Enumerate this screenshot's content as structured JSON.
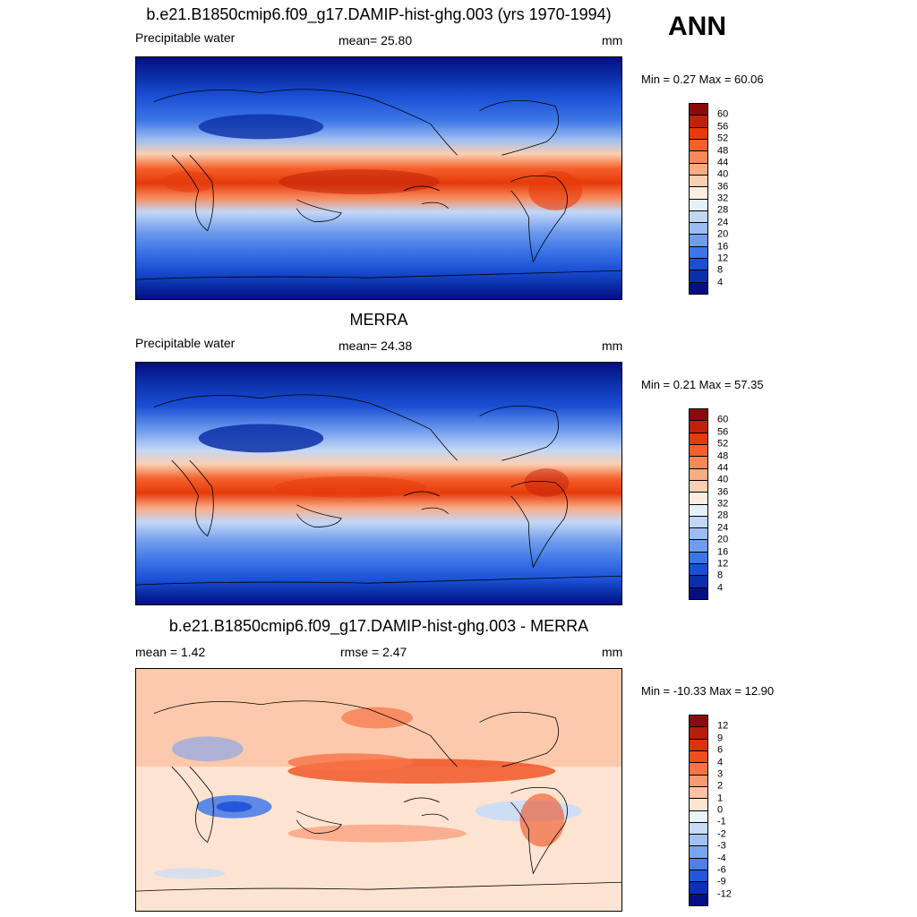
{
  "season": "ANN",
  "panels": [
    {
      "title": "b.e21.B1850cmip6.f09_g17.DAMIP-hist-ghg.003 (yrs 1970-1994)",
      "left": "Precipitable water",
      "center": "mean=  25.80",
      "right": "mm",
      "minmax": "Min =   0.27 Max =  60.06",
      "cbar_labels": [
        "60",
        "56",
        "52",
        "48",
        "44",
        "40",
        "36",
        "32",
        "28",
        "24",
        "20",
        "16",
        "12",
        "8",
        "4"
      ],
      "cbar_colors": [
        "#8b0a0a",
        "#c1200a",
        "#e63a0a",
        "#f4602c",
        "#f7885a",
        "#f9ab86",
        "#fbcfb2",
        "#fdeee0",
        "#e6f0fc",
        "#c2d7f7",
        "#9dbdf2",
        "#6f9ced",
        "#3c75e6",
        "#1a4fd4",
        "#0a2fa8",
        "#060e84"
      ]
    },
    {
      "title": "MERRA",
      "left": "Precipitable water",
      "center": "mean=  24.38",
      "right": "mm",
      "minmax": "Min =   0.21 Max =  57.35",
      "cbar_labels": [
        "60",
        "56",
        "52",
        "48",
        "44",
        "40",
        "36",
        "32",
        "28",
        "24",
        "20",
        "16",
        "12",
        "8",
        "4"
      ],
      "cbar_colors": [
        "#8b0a0a",
        "#c1200a",
        "#e63a0a",
        "#f4602c",
        "#f7885a",
        "#f9ab86",
        "#fbcfb2",
        "#fdeee0",
        "#e6f0fc",
        "#c2d7f7",
        "#9dbdf2",
        "#6f9ced",
        "#3c75e6",
        "#1a4fd4",
        "#0a2fa8",
        "#060e84"
      ]
    },
    {
      "title": "b.e21.B1850cmip6.f09_g17.DAMIP-hist-ghg.003 - MERRA",
      "left": "mean =   1.42",
      "center": "rmse =   2.47",
      "right": "mm",
      "minmax": "Min = -10.33 Max =  12.90",
      "cbar_labels": [
        "12",
        "9",
        "6",
        "4",
        "3",
        "2",
        "1",
        "0",
        "-1",
        "-2",
        "-3",
        "-4",
        "-6",
        "-9",
        "-12"
      ],
      "cbar_colors": [
        "#8b0a0a",
        "#b81c0a",
        "#dc320a",
        "#f04e1e",
        "#f67346",
        "#f89a74",
        "#fbc2a4",
        "#fde4d2",
        "#eaf2fc",
        "#c8dcf8",
        "#a2c2f3",
        "#7aa4ee",
        "#4c80e8",
        "#2456dc",
        "#0c30b4",
        "#060e84"
      ]
    }
  ]
}
